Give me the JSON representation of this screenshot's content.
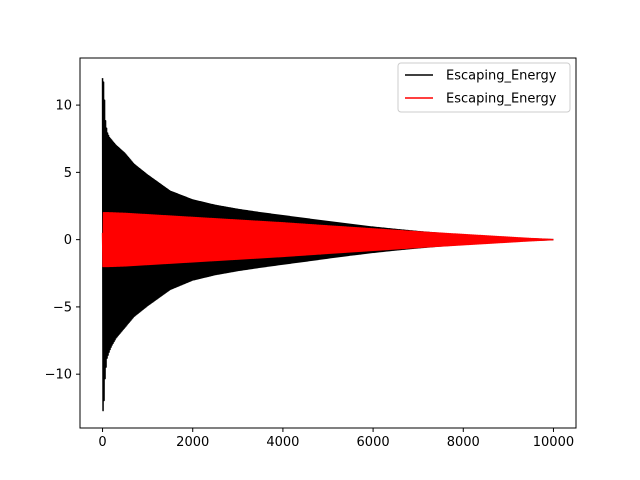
{
  "chart_data": {
    "type": "line",
    "title": "",
    "xlabel": "",
    "ylabel": "",
    "xlim": [
      -500,
      10500
    ],
    "ylim": [
      -14,
      13.5
    ],
    "grid": false,
    "legend_placement": "top-right",
    "x_ticks": [
      {
        "value": 0,
        "label": "0"
      },
      {
        "value": 2000,
        "label": "2000"
      },
      {
        "value": 4000,
        "label": "4000"
      },
      {
        "value": 6000,
        "label": "6000"
      },
      {
        "value": 8000,
        "label": "8000"
      },
      {
        "value": 10000,
        "label": "10000"
      }
    ],
    "y_ticks": [
      {
        "value": 10,
        "label": "10"
      },
      {
        "value": 5,
        "label": "5"
      },
      {
        "value": 0,
        "label": "0"
      },
      {
        "value": -5,
        "label": "−5"
      },
      {
        "value": -10,
        "label": "−10"
      }
    ],
    "series": [
      {
        "name": "Escaping_Energy",
        "color": "#000000",
        "envelope": {
          "x": [
            0,
            30,
            60,
            100,
            150,
            200,
            300,
            400,
            500,
            700,
            1000,
            1500,
            2000,
            2500,
            3000,
            3500,
            4000,
            4500,
            5000,
            5500,
            6000,
            6500,
            7000,
            7500,
            8000,
            8500,
            9000,
            9500,
            10000
          ],
          "upper": [
            12.0,
            11.6,
            9.0,
            8.0,
            7.6,
            7.4,
            7.0,
            6.7,
            6.4,
            5.6,
            4.8,
            3.6,
            2.95,
            2.55,
            2.25,
            2.0,
            1.78,
            1.56,
            1.34,
            1.13,
            0.93,
            0.76,
            0.6,
            0.46,
            0.34,
            0.23,
            0.13,
            0.06,
            0.0
          ],
          "lower": [
            -13.0,
            -12.2,
            -10.0,
            -8.8,
            -8.3,
            -7.9,
            -7.3,
            -6.9,
            -6.5,
            -5.7,
            -4.9,
            -3.7,
            -3.0,
            -2.6,
            -2.3,
            -2.05,
            -1.82,
            -1.6,
            -1.37,
            -1.15,
            -0.95,
            -0.77,
            -0.61,
            -0.47,
            -0.35,
            -0.24,
            -0.14,
            -0.06,
            0.0
          ]
        }
      },
      {
        "name": "Escaping_Energy",
        "color": "#ff0000",
        "envelope": {
          "x": [
            0,
            10,
            100,
            500,
            1000,
            2000,
            3000,
            4000,
            5000,
            6000,
            7000,
            8000,
            9000,
            9500,
            10000
          ],
          "upper": [
            0.5,
            2.0,
            2.0,
            1.95,
            1.85,
            1.65,
            1.45,
            1.25,
            1.02,
            0.8,
            0.58,
            0.38,
            0.18,
            0.08,
            0.0
          ],
          "lower": [
            -0.5,
            -2.0,
            -2.0,
            -1.95,
            -1.85,
            -1.65,
            -1.45,
            -1.25,
            -1.02,
            -0.8,
            -0.58,
            -0.38,
            -0.18,
            -0.08,
            0.0
          ]
        }
      }
    ]
  }
}
